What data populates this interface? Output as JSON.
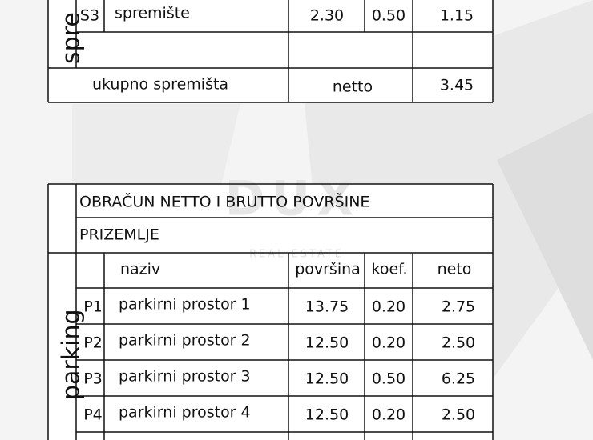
{
  "storage_table": {
    "section_label": "spre",
    "rows": [
      {
        "code": "S3",
        "name": "spremište",
        "area": "2.30",
        "coef": "0.50",
        "net": "1.15"
      }
    ],
    "total": {
      "label": "ukupno spremišta",
      "type": "netto",
      "value": "3.45"
    }
  },
  "watermark": {
    "brand": "DUX",
    "tagline": "REAL ESTATE"
  },
  "area_table": {
    "title": "OBRAČUN NETTO I BRUTTO POVRŠINE",
    "floor": "PRIZEMLJE",
    "section_label": "parking",
    "header": [
      "naziv",
      "površina",
      "koef.",
      "neto"
    ],
    "rows": [
      {
        "code": "P1",
        "name": "parkirni prostor 1",
        "area": "13.75",
        "coef": "0.20",
        "net": "2.75"
      },
      {
        "code": "P2",
        "name": "parkirni prostor 2",
        "area": "12.50",
        "coef": "0.20",
        "net": "2.50"
      },
      {
        "code": "P3",
        "name": "parkirni prostor 3",
        "area": "12.50",
        "coef": "0.50",
        "net": "6.25"
      },
      {
        "code": "P4",
        "name": "parkirni prostor 4",
        "area": "12.50",
        "coef": "0.20",
        "net": "2.50"
      }
    ]
  }
}
